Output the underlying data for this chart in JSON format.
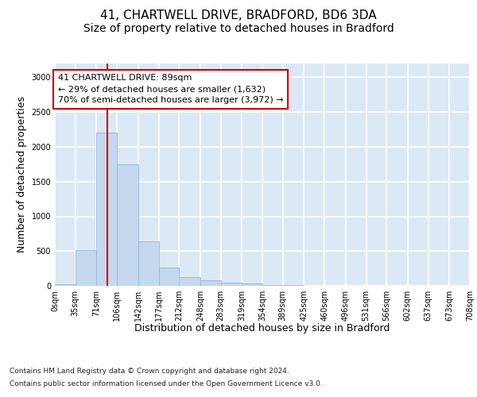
{
  "title_line1": "41, CHARTWELL DRIVE, BRADFORD, BD6 3DA",
  "title_line2": "Size of property relative to detached houses in Bradford",
  "xlabel": "Distribution of detached houses by size in Bradford",
  "ylabel": "Number of detached properties",
  "footer_line1": "Contains HM Land Registry data © Crown copyright and database right 2024.",
  "footer_line2": "Contains public sector information licensed under the Open Government Licence v3.0.",
  "annotation_line1": "41 CHARTWELL DRIVE: 89sqm",
  "annotation_line2": "← 29% of detached houses are smaller (1,632)",
  "annotation_line3": "70% of semi-detached houses are larger (3,972) →",
  "bar_values": [
    20,
    510,
    2200,
    1750,
    640,
    260,
    130,
    75,
    45,
    30,
    15,
    8,
    4,
    2,
    1,
    1,
    0,
    0,
    0,
    0
  ],
  "bin_edges": [
    0,
    35,
    71,
    106,
    142,
    177,
    212,
    248,
    283,
    319,
    354,
    389,
    425,
    460,
    496,
    531,
    566,
    602,
    637,
    673,
    708
  ],
  "bin_labels": [
    "0sqm",
    "35sqm",
    "71sqm",
    "106sqm",
    "142sqm",
    "177sqm",
    "212sqm",
    "248sqm",
    "283sqm",
    "319sqm",
    "354sqm",
    "389sqm",
    "425sqm",
    "460sqm",
    "496sqm",
    "531sqm",
    "566sqm",
    "602sqm",
    "637sqm",
    "673sqm",
    "708sqm"
  ],
  "bar_color": "#c5d8ed",
  "bar_edge_color": "#8db4d6",
  "property_line_x": 89,
  "property_line_color": "#cc0000",
  "annotation_box_color": "#cc0000",
  "ylim": [
    0,
    3200
  ],
  "yticks": [
    0,
    500,
    1000,
    1500,
    2000,
    2500,
    3000
  ],
  "background_color": "#dce8f5",
  "grid_color": "#ffffff",
  "fig_bg": "#ffffff",
  "title_fontsize": 11,
  "subtitle_fontsize": 10,
  "axis_label_fontsize": 9,
  "tick_fontsize": 7,
  "footer_fontsize": 6.5
}
